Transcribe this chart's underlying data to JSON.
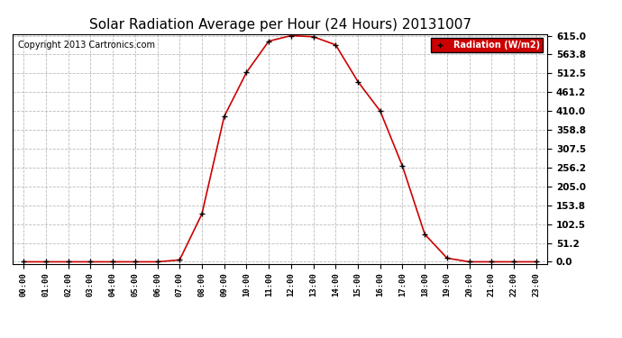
{
  "title": "Solar Radiation Average per Hour (24 Hours) 20131007",
  "copyright_text": "Copyright 2013 Cartronics.com",
  "legend_label": "Radiation (W/m2)",
  "hours": [
    "00:00",
    "01:00",
    "02:00",
    "03:00",
    "04:00",
    "05:00",
    "06:00",
    "07:00",
    "08:00",
    "09:00",
    "10:00",
    "11:00",
    "12:00",
    "13:00",
    "14:00",
    "15:00",
    "16:00",
    "17:00",
    "18:00",
    "19:00",
    "20:00",
    "21:00",
    "22:00",
    "23:00"
  ],
  "values": [
    0,
    0,
    0,
    0,
    0,
    0,
    0,
    5,
    130,
    395,
    515,
    600,
    615,
    612,
    590,
    490,
    410,
    260,
    75,
    10,
    0,
    0,
    0,
    0
  ],
  "line_color": "#cc0000",
  "marker": "+",
  "marker_color": "black",
  "bg_color": "#ffffff",
  "grid_color": "#bbbbbb",
  "ymin": 0.0,
  "ymax": 615.0,
  "ytick_values": [
    0.0,
    51.2,
    102.5,
    153.8,
    205.0,
    256.2,
    307.5,
    358.8,
    410.0,
    461.2,
    512.5,
    563.8,
    615.0
  ],
  "title_fontsize": 11,
  "copyright_fontsize": 7,
  "legend_bg": "#cc0000",
  "legend_text_color": "white"
}
